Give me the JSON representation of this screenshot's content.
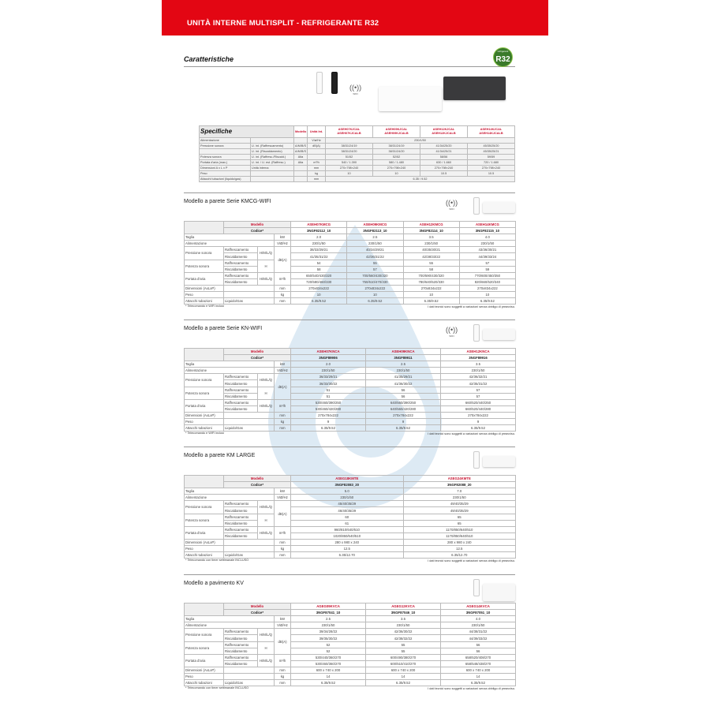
{
  "header": {
    "title": "UNITÀ INTERNE MULTISPLIT - REFRIGERANTE R32"
  },
  "features": {
    "title": "Caratteristiche",
    "badge": "R32",
    "badge_small": "refrigerant",
    "wifi_label": "WIFI"
  },
  "specifiche": {
    "title": "Specifiche",
    "col_modello": "Modello",
    "col_unita": "Unità Int.",
    "models": [
      [
        "ASEH07KJCAL",
        "ASEH07KJCALB"
      ],
      [
        "ASEH09KJCAL",
        "ASEH09KJCALB"
      ],
      [
        "ASEH12KJCAL",
        "ASEH12KJCALB"
      ],
      [
        "ASEH14KJCAL",
        "ASEH14KJCALB"
      ]
    ],
    "rows": [
      {
        "label": "Alimentazione",
        "sub": "",
        "mod": "",
        "unit": "V/ø/Hz",
        "span": "230/1/50"
      },
      {
        "label": "Pressione sonora",
        "sub": "U. int. (Raffrescamento)",
        "mod": "A/M/B/S",
        "unit": "dB(A)",
        "values": [
          "38/31/24/19",
          "38/31/24/19",
          "41/34/25/20",
          "45/35/25/20"
        ]
      },
      {
        "label": "",
        "sub": "U. int. (Riscaldamento)",
        "mod": "A/M/B/S",
        "unit": "",
        "values": [
          "38/31/24/20",
          "38/31/24/20",
          "41/34/25/21",
          "45/35/25/21"
        ]
      },
      {
        "label": "Potenza sonora",
        "sub": "U. int. (Raffresc./Riscald.)",
        "mod": "Alta",
        "unit": "",
        "values": [
          "51/52",
          "52/52",
          "58/56",
          "59/59"
        ]
      },
      {
        "label": "Portata d'aria (max.)",
        "sub": "U. int. / U. est. (Raffresc.)",
        "mod": "Alta",
        "unit": "m³/h",
        "values": [
          "540 / 1.390",
          "580 / 1.480",
          "630 / 1.660",
          "720 / 1.680"
        ]
      },
      {
        "label": "Dimensioni A x L x P",
        "sub": "Unità interna",
        "mod": "",
        "unit": "mm",
        "values": [
          "270×798×240",
          "270×798×240",
          "270×798×240",
          "270×798×240"
        ]
      },
      {
        "label": "Peso",
        "sub": "",
        "mod": "",
        "unit": "kg",
        "values": [
          "10",
          "10",
          "10.5",
          "10.5"
        ]
      },
      {
        "label": "Attacchi tubazioni (liquido/gas)",
        "sub": "",
        "mod": "",
        "unit": "mm",
        "span": "6.35 / 9.52"
      }
    ]
  },
  "labels": {
    "modello": "Modello",
    "codice": "Codice*",
    "taglia": "Taglia",
    "alimentazione": "Alimentazione",
    "pressione": "Pressione sonora",
    "potenza": "Potenza sonora",
    "portata": "Portata d'aria",
    "raff": "Raffrescamento",
    "risc": "Riscaldamento",
    "hmlq": "H/M/L/Q",
    "h": "H",
    "dimensioni": "Dimensioni (AxLxP)",
    "peso": "Peso",
    "attacchi": "Attacchi tubazioni",
    "liqgas": "Liquido/Gas",
    "u_kw": "kW",
    "u_v": "V/Ø/Hz",
    "u_db": "dB(A)",
    "u_m3": "m³/h",
    "u_mm": "mm",
    "u_kg": "kg",
    "disclaimer": "I dati tecnici sono soggetti a variazioni senza obbligo di preavviso."
  },
  "sections": [
    {
      "title": "Modello a parete Serie KMCG-WIFI",
      "models": [
        "ASEH07KMCG",
        "ASEH09KMCG",
        "ASEH12KMCG",
        "ASEH14KMCG"
      ],
      "codes": [
        "3NGF82112_10",
        "3NGF82113_10",
        "3NGF82114_10",
        "3NGF82115_10"
      ],
      "taglia": [
        "2.0",
        "2.5",
        "3.5",
        "4.0"
      ],
      "alimentazione": [
        "230/1/50",
        "230/1/50",
        "230/1/50",
        "230/1/50"
      ],
      "pressione_raff": [
        "38/33/29/21",
        "40/34/29/21",
        "40/35/30/21",
        "43/36/30/21"
      ],
      "pressione_risc": [
        "41/35/31/22",
        "42/36/31/22",
        "42/38/33/22",
        "44/39/33/24"
      ],
      "potenza_raff": [
        "54",
        "55",
        "55",
        "57"
      ],
      "potenza_risc": [
        "58",
        "57",
        "58",
        "59"
      ],
      "portata_raff": [
        "650/540/430/320",
        "700/560/430/320",
        "700/590/430/320",
        "770/600/450/350"
      ],
      "portata_risc": [
        "720/580/460/330",
        "750/610/470/330",
        "780/640/520/330",
        "820/660/520/340"
      ],
      "dimensioni": [
        "270x834x222",
        "270x834x222",
        "270x834x222",
        "270x834x222"
      ],
      "peso": [
        "10",
        "10",
        "10",
        "10"
      ],
      "attacchi": [
        "6.35/9.52",
        "6.35/9.52",
        "6.35/9.52",
        "6.35/9.52"
      ],
      "footnote": "* Telecomando e WIFI inclusi"
    },
    {
      "title": "Modello a parete Serie KN-WIFI",
      "models": [
        "ASEH07KNCA",
        "ASEH09KNCA",
        "ASEH12KNCA"
      ],
      "codes": [
        "3NGF89906",
        "3NGF89911",
        "3NGF89916"
      ],
      "taglia": [
        "2.0",
        "2.5",
        "3.5"
      ],
      "alimentazione": [
        "230/1/50",
        "230/1/50",
        "230/1/50"
      ],
      "pressione_raff": [
        "36/33/29/21",
        "41/35/29/21",
        "42/36/32/21"
      ],
      "pressione_risc": [
        "36/33/30/22",
        "41/36/30/22",
        "42/35/31/22"
      ],
      "potenza_raff": [
        "51",
        "56",
        "57"
      ],
      "potenza_risc": [
        "51",
        "56",
        "57"
      ],
      "portata_raff": [
        "530/460/390/250",
        "640/560/390/250",
        "660/520/440/250"
      ],
      "portata_risc": [
        "530/460/420/280",
        "640/560/420/280",
        "660/520/440/280"
      ],
      "dimensioni": [
        "270x784x222",
        "270x784x222",
        "270x784x222"
      ],
      "peso": [
        "9",
        "9",
        "9"
      ],
      "attacchi": [
        "6.35/9.52",
        "6.35/9.52",
        "6.35/9.52"
      ],
      "footnote": "* Telecomando e WIFI inclusi"
    },
    {
      "title": "Modello a parete KM LARGE",
      "models": [
        "ASEG18KMTE",
        "ASEG24KMTE"
      ],
      "codes": [
        "3NGF82083_20",
        "3NGF82088_20"
      ],
      "taglia": [
        "5.0",
        "7.0"
      ],
      "alimentazione": [
        "230/1/50",
        "230/1/50"
      ],
      "pressione_raff": [
        "45/40/35/29",
        "49/40/35/29"
      ],
      "pressione_risc": [
        "46/40/35/29",
        "49/40/35/29"
      ],
      "potenza_raff": [
        "60",
        "65"
      ],
      "potenza_risc": [
        "61",
        "65"
      ],
      "portata_raff": [
        "960/810/640/510",
        "1170/850/640/510"
      ],
      "portata_risc": [
        "1020/850/640/510",
        "1170/850/640/510"
      ],
      "dimensioni": [
        "280 x 980 x 240",
        "280 x 980 x 240"
      ],
      "peso": [
        "12.5",
        "12.5"
      ],
      "attacchi": [
        "6.35/12.70",
        "6.35/12.70"
      ],
      "footnote": "* Telecomando con timer settimanale INCLUSO"
    },
    {
      "title": "Modello a pavimento KV",
      "models": [
        "AGEG09KVCA",
        "AGEG12KVCA",
        "AGEG14KVCA"
      ],
      "codes": [
        "3NGF87041_10",
        "3NGF87046_10",
        "3NGF87051_10"
      ],
      "taglia": [
        "2.5",
        "3.5",
        "4.0"
      ],
      "alimentazione": [
        "230/1/50",
        "230/1/50",
        "230/1/50"
      ],
      "pressione_raff": [
        "39/34/28/22",
        "42/36/30/22",
        "44/38/31/22"
      ],
      "pressione_risc": [
        "39/35/30/22",
        "42/38/32/22",
        "44/39/33/22"
      ],
      "potenza_raff": [
        "52",
        "55",
        "56"
      ],
      "potenza_risc": [
        "52",
        "55",
        "56"
      ],
      "portata_raff": [
        "530/440/360/270",
        "600/490/380/270",
        "658/520/408/270"
      ],
      "portata_risc": [
        "530/460/360/270",
        "600/510/410/270",
        "658/548/438/270"
      ],
      "dimensioni": [
        "600 x 740 x 200",
        "600 x 740 x 200",
        "600 x 740 x 200"
      ],
      "peso": [
        "14",
        "14",
        "14"
      ],
      "attacchi": [
        "6.35/9.52",
        "6.35/9.52",
        "6.35/9.52"
      ],
      "footnote": "* Telecomando con timer settimanale INCLUSO"
    }
  ],
  "colors": {
    "brand_red": "#e30613",
    "model_red": "#c8102e",
    "r32_green": "#3a7a2a",
    "watermark_blue": "#4a90c8"
  }
}
